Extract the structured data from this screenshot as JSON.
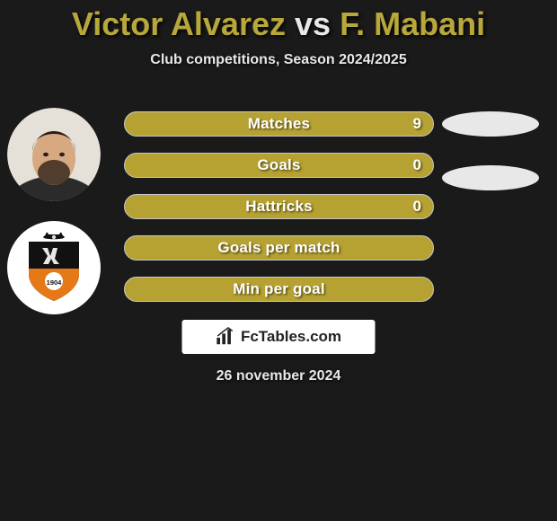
{
  "title": {
    "player1": "Victor Alvarez",
    "vs": "vs",
    "player2": "F. Mabani"
  },
  "subtitle": "Club competitions, Season 2024/2025",
  "colors": {
    "bar_fill": "#b6a232",
    "bar_border": "#c8c8c8",
    "background": "#1a1a1a",
    "title_player": "#b8a73a",
    "title_vs": "#e8e8e8",
    "text_light": "#e8e8e8",
    "empty_pill": "#e8e8e8",
    "brand_bg": "#ffffff",
    "brand_text": "#222222"
  },
  "stats": [
    {
      "label": "Matches",
      "value": "9",
      "show_value": true
    },
    {
      "label": "Goals",
      "value": "0",
      "show_value": true
    },
    {
      "label": "Hattricks",
      "value": "0",
      "show_value": true
    },
    {
      "label": "Goals per match",
      "value": "",
      "show_value": false
    },
    {
      "label": "Min per goal",
      "value": "",
      "show_value": false
    }
  ],
  "empty_pill_count": 2,
  "brand": "FcTables.com",
  "date": "26 november 2024",
  "badge": {
    "top_color": "#111111",
    "bottom_color": "#e57817",
    "year": "1904"
  }
}
